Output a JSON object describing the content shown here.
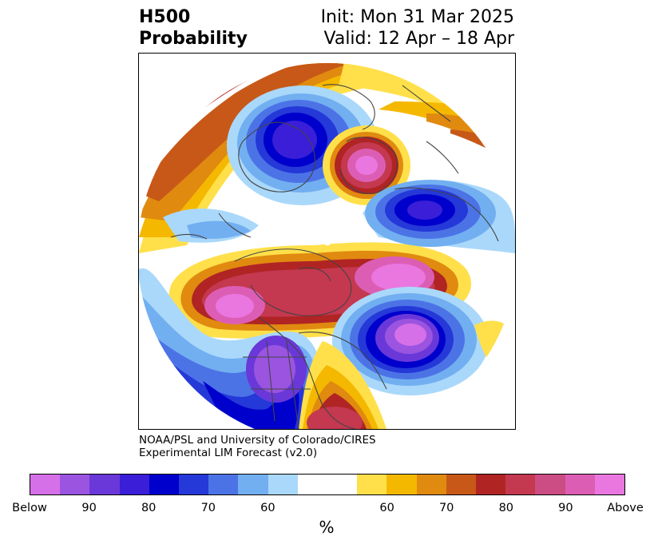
{
  "header": {
    "title_line1": "H500",
    "title_line2": "Probability",
    "init_text": "Init: Mon 31 Mar 2025",
    "valid_text": "Valid: 12 Apr – 18 Apr"
  },
  "credit": {
    "line1": "NOAA/PSL and University of Colorado/CIRES",
    "line2": "Experimental LIM Forecast (v2.0)"
  },
  "colorbar": {
    "label": "%",
    "colors": [
      "#d670e8",
      "#9a54e0",
      "#6a38d8",
      "#3a1ed8",
      "#0000cc",
      "#2538d8",
      "#4c73e6",
      "#72aff1",
      "#aad8fa",
      "#ffffff",
      "#ffffff",
      "#ffe04a",
      "#f5b800",
      "#e08a10",
      "#c85818",
      "#b02424",
      "#c43850",
      "#cc4c84",
      "#dc5eb4",
      "#ea76e0"
    ],
    "ticks": [
      "Below",
      "90",
      "80",
      "70",
      "60",
      "60",
      "70",
      "80",
      "90",
      "Above"
    ]
  }
}
